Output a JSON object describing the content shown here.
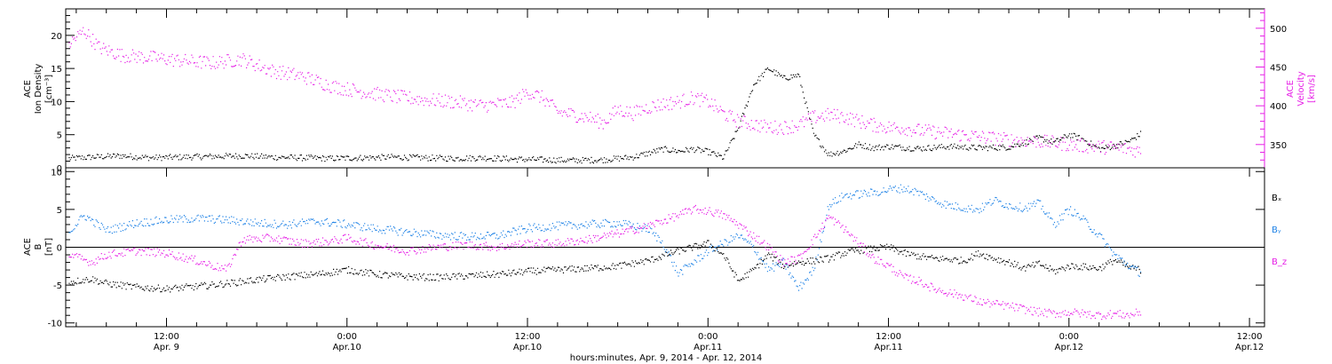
{
  "figure": {
    "xlabel": "hours:minutes, Apr.  9, 2014 - Apr. 12, 2014",
    "x_ticks": [
      {
        "hour": 12,
        "label1": "12:00",
        "label2": "Apr. 9"
      },
      {
        "hour": 24,
        "label1": "0:00",
        "label2": "Apr.10"
      },
      {
        "hour": 36,
        "label1": "12:00",
        "label2": "Apr.10"
      },
      {
        "hour": 48,
        "label1": "0:00",
        "label2": "Apr.11"
      },
      {
        "hour": 60,
        "label1": "12:00",
        "label2": "Apr.11"
      },
      {
        "hour": 72,
        "label1": "0:00",
        "label2": "Apr.12"
      },
      {
        "hour": 84,
        "label1": "12:00",
        "label2": "Apr.12"
      }
    ],
    "x_domain_hours": [
      5.3,
      85.0
    ],
    "colors": {
      "black": "#000000",
      "magenta": "#e61ee6",
      "blue": "#1e82e6"
    }
  },
  "chart_data": [
    {
      "type": "scatter",
      "panel": "top",
      "ylabel": {
        "line1": "ACE",
        "line2": "Ion Density",
        "line3": "[cm⁻³]"
      },
      "ylim": [
        0,
        24
      ],
      "yticks": [
        0,
        5,
        10,
        15,
        20
      ],
      "y2label": {
        "line1": "ACE",
        "line2": "Velocity",
        "line3": "[km/s]"
      },
      "y2lim": [
        320,
        525
      ],
      "y2ticks": [
        350,
        400,
        450,
        500
      ],
      "series": [
        {
          "axis": "left",
          "color": "#000000",
          "points": [
            [
              5.5,
              1.4
            ],
            [
              7,
              1.6
            ],
            [
              9,
              1.8
            ],
            [
              11,
              1.5
            ],
            [
              13,
              1.6
            ],
            [
              15,
              1.7
            ],
            [
              17,
              1.8
            ],
            [
              19,
              1.6
            ],
            [
              21,
              1.5
            ],
            [
              23,
              1.4
            ],
            [
              25,
              1.5
            ],
            [
              27,
              1.6
            ],
            [
              29,
              1.5
            ],
            [
              31,
              1.4
            ],
            [
              33,
              1.5
            ],
            [
              35,
              1.3
            ],
            [
              37,
              1.2
            ],
            [
              39,
              1.1
            ],
            [
              41,
              1.2
            ],
            [
              43,
              1.6
            ],
            [
              44,
              2.2
            ],
            [
              45,
              2.8
            ],
            [
              46,
              2.5
            ],
            [
              47,
              2.8
            ],
            [
              48,
              2.4
            ],
            [
              49,
              1.5
            ],
            [
              50,
              6.0
            ],
            [
              51,
              12.5
            ],
            [
              52,
              15.0
            ],
            [
              53,
              13.5
            ],
            [
              54,
              14.0
            ],
            [
              55,
              5.0
            ],
            [
              56,
              2.0
            ],
            [
              57,
              2.5
            ],
            [
              58,
              3.5
            ],
            [
              59,
              3.0
            ],
            [
              60,
              3.2
            ],
            [
              62,
              2.9
            ],
            [
              64,
              3.2
            ],
            [
              66,
              3.0
            ],
            [
              68,
              3.1
            ],
            [
              70,
              4.5
            ],
            [
              71,
              3.8
            ],
            [
              72,
              5.0
            ],
            [
              73,
              4.2
            ],
            [
              74,
              2.8
            ],
            [
              75,
              3.3
            ],
            [
              76,
              4.0
            ],
            [
              76.8,
              5.2
            ]
          ]
        },
        {
          "axis": "right",
          "color": "#e61ee6",
          "points": [
            [
              5.5,
              480
            ],
            [
              6.5,
              497
            ],
            [
              7.5,
              475
            ],
            [
              9,
              465
            ],
            [
              11,
              462
            ],
            [
              13,
              458
            ],
            [
              15,
              455
            ],
            [
              17,
              460
            ],
            [
              19,
              445
            ],
            [
              21,
              438
            ],
            [
              23,
              425
            ],
            [
              25,
              418
            ],
            [
              27,
              412
            ],
            [
              29,
              408
            ],
            [
              31,
              405
            ],
            [
              33,
              400
            ],
            [
              35,
              404
            ],
            [
              36,
              418
            ],
            [
              37,
              410
            ],
            [
              38,
              392
            ],
            [
              40,
              385
            ],
            [
              41,
              378
            ],
            [
              42,
              395
            ],
            [
              43,
              390
            ],
            [
              44,
              398
            ],
            [
              45,
              402
            ],
            [
              46,
              405
            ],
            [
              47,
              410
            ],
            [
              48,
              405
            ],
            [
              49,
              390
            ],
            [
              50,
              380
            ],
            [
              51,
              376
            ],
            [
              52,
              372
            ],
            [
              53,
              372
            ],
            [
              54,
              375
            ],
            [
              55,
              385
            ],
            [
              56,
              388
            ],
            [
              57,
              386
            ],
            [
              58,
              380
            ],
            [
              59,
              375
            ],
            [
              60,
              372
            ],
            [
              61,
              371
            ],
            [
              62,
              368
            ],
            [
              63,
              366
            ],
            [
              64,
              364
            ],
            [
              65,
              362
            ],
            [
              66,
              360
            ],
            [
              67,
              358
            ],
            [
              68,
              356
            ],
            [
              69,
              355
            ],
            [
              70,
              354
            ],
            [
              71,
              352
            ],
            [
              72,
              350
            ],
            [
              73,
              348
            ],
            [
              74,
              347
            ],
            [
              75,
              346
            ],
            [
              76,
              344
            ],
            [
              76.8,
              341
            ]
          ]
        }
      ]
    },
    {
      "type": "scatter",
      "panel": "bottom",
      "ylabel": {
        "line1": "ACE",
        "line2": "B",
        "line3": "[nT]"
      },
      "ylim": [
        -10.5,
        10.5
      ],
      "yticks": [
        -10,
        -5,
        0,
        5,
        10
      ],
      "legend": [
        "Bₓ",
        "Bᵧ",
        "B_z"
      ],
      "series": [
        {
          "name": "Bₓ",
          "color": "#000000",
          "points": [
            [
              5.5,
              -4.6
            ],
            [
              7,
              -4.2
            ],
            [
              8,
              -4.8
            ],
            [
              10,
              -5.3
            ],
            [
              12,
              -5.5
            ],
            [
              14,
              -5.2
            ],
            [
              16,
              -4.8
            ],
            [
              18,
              -4.3
            ],
            [
              20,
              -3.9
            ],
            [
              22,
              -3.6
            ],
            [
              24,
              -3.0
            ],
            [
              26,
              -3.6
            ],
            [
              28,
              -3.9
            ],
            [
              30,
              -4.0
            ],
            [
              32,
              -3.8
            ],
            [
              34,
              -3.6
            ],
            [
              36,
              -3.2
            ],
            [
              38,
              -3.0
            ],
            [
              40,
              -2.8
            ],
            [
              42,
              -2.5
            ],
            [
              44,
              -1.8
            ],
            [
              46,
              -0.5
            ],
            [
              48,
              0.5
            ],
            [
              49,
              -1.0
            ],
            [
              50,
              -4.5
            ],
            [
              51,
              -3.0
            ],
            [
              52,
              -1.0
            ],
            [
              53,
              -2.5
            ],
            [
              54,
              -2.0
            ],
            [
              55,
              -1.8
            ],
            [
              56,
              -1.5
            ],
            [
              57,
              -0.8
            ],
            [
              58,
              -0.4
            ],
            [
              59,
              -0.2
            ],
            [
              60,
              0.0
            ],
            [
              61,
              -0.8
            ],
            [
              62,
              -1.2
            ],
            [
              63,
              -1.5
            ],
            [
              64,
              -1.6
            ],
            [
              65,
              -1.8
            ],
            [
              66,
              -0.8
            ],
            [
              67,
              -1.5
            ],
            [
              68,
              -2.0
            ],
            [
              69,
              -2.8
            ],
            [
              70,
              -2.2
            ],
            [
              71,
              -3.2
            ],
            [
              72,
              -2.5
            ],
            [
              73,
              -2.6
            ],
            [
              74,
              -2.8
            ],
            [
              75,
              -1.7
            ],
            [
              76,
              -2.7
            ],
            [
              76.8,
              -3.0
            ]
          ]
        },
        {
          "name": "Bᵧ",
          "color": "#1e82e6",
          "points": [
            [
              5.5,
              2.0
            ],
            [
              6.5,
              4.2
            ],
            [
              8,
              2.2
            ],
            [
              10,
              3.2
            ],
            [
              12,
              3.6
            ],
            [
              14,
              3.8
            ],
            [
              16,
              3.6
            ],
            [
              18,
              3.2
            ],
            [
              20,
              3.0
            ],
            [
              22,
              3.4
            ],
            [
              24,
              3.0
            ],
            [
              26,
              2.4
            ],
            [
              28,
              2.0
            ],
            [
              30,
              1.6
            ],
            [
              32,
              1.4
            ],
            [
              34,
              1.5
            ],
            [
              36,
              2.5
            ],
            [
              38,
              2.8
            ],
            [
              40,
              3.0
            ],
            [
              42,
              3.2
            ],
            [
              44,
              2.4
            ],
            [
              45,
              0.5
            ],
            [
              46,
              -3.5
            ],
            [
              47,
              -2.0
            ],
            [
              48,
              -0.5
            ],
            [
              49,
              0.5
            ],
            [
              50,
              1.5
            ],
            [
              51,
              0.0
            ],
            [
              52,
              -3.0
            ],
            [
              53,
              -2.0
            ],
            [
              54,
              -5.5
            ],
            [
              55,
              -3.0
            ],
            [
              56,
              5.5
            ],
            [
              57,
              6.8
            ],
            [
              58,
              7.0
            ],
            [
              59,
              7.2
            ],
            [
              60,
              7.6
            ],
            [
              61,
              7.8
            ],
            [
              62,
              7.2
            ],
            [
              63,
              6.2
            ],
            [
              64,
              5.5
            ],
            [
              65,
              5.2
            ],
            [
              66,
              5.0
            ],
            [
              67,
              6.2
            ],
            [
              68,
              5.5
            ],
            [
              69,
              5.2
            ],
            [
              70,
              5.8
            ],
            [
              71,
              3.0
            ],
            [
              72,
              5.0
            ],
            [
              73,
              3.5
            ],
            [
              74,
              1.5
            ],
            [
              75,
              -1.0
            ],
            [
              76,
              -2.5
            ],
            [
              76.8,
              -3.5
            ]
          ]
        },
        {
          "name": "B_z",
          "color": "#e61ee6",
          "points": [
            [
              5.5,
              -1.0
            ],
            [
              7,
              -2.0
            ],
            [
              8,
              -1.0
            ],
            [
              10,
              -0.5
            ],
            [
              12,
              -0.8
            ],
            [
              14,
              -1.8
            ],
            [
              16,
              -3.0
            ],
            [
              17,
              1.0
            ],
            [
              19,
              1.2
            ],
            [
              21,
              0.5
            ],
            [
              23,
              0.8
            ],
            [
              24,
              1.2
            ],
            [
              26,
              0.2
            ],
            [
              28,
              -0.5
            ],
            [
              30,
              0.0
            ],
            [
              32,
              0.3
            ],
            [
              34,
              0.0
            ],
            [
              36,
              0.5
            ],
            [
              38,
              0.5
            ],
            [
              40,
              1.0
            ],
            [
              42,
              1.8
            ],
            [
              44,
              2.8
            ],
            [
              46,
              4.2
            ],
            [
              47,
              5.0
            ],
            [
              48,
              4.8
            ],
            [
              49,
              4.2
            ],
            [
              50,
              3.0
            ],
            [
              51,
              1.5
            ],
            [
              52,
              0.0
            ],
            [
              53,
              -2.0
            ],
            [
              54,
              -1.5
            ],
            [
              55,
              1.0
            ],
            [
              56,
              4.0
            ],
            [
              57,
              2.5
            ],
            [
              58,
              0.5
            ],
            [
              59,
              -1.5
            ],
            [
              60,
              -2.5
            ],
            [
              61,
              -4.0
            ],
            [
              62,
              -4.5
            ],
            [
              63,
              -5.5
            ],
            [
              64,
              -6.0
            ],
            [
              65,
              -6.5
            ],
            [
              66,
              -7.2
            ],
            [
              67,
              -7.5
            ],
            [
              68,
              -7.8
            ],
            [
              69,
              -8.2
            ],
            [
              70,
              -8.6
            ],
            [
              71,
              -8.8
            ],
            [
              72,
              -8.6
            ],
            [
              73,
              -8.8
            ],
            [
              74,
              -9.0
            ],
            [
              75,
              -8.8
            ],
            [
              76,
              -9.0
            ],
            [
              76.8,
              -8.5
            ]
          ]
        }
      ]
    }
  ]
}
